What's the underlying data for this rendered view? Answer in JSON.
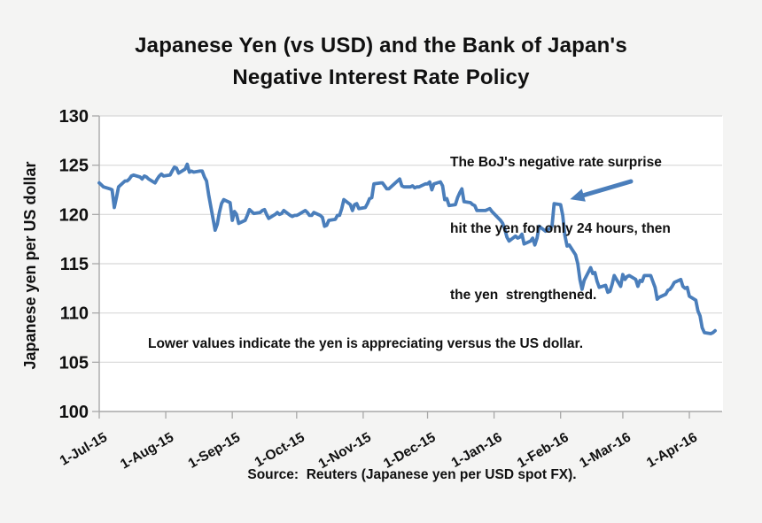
{
  "title": {
    "line1": "Japanese Yen (vs USD) and the Bank of Japan's",
    "line2": "Negative Interest Rate Policy"
  },
  "annotation": {
    "line1": "The BoJ's negative rate surprise",
    "line2": "hit the yen for only 24 hours, then",
    "line3": "the yen  strengthened."
  },
  "note": "Lower values indicate the yen is appreciating versus the US dollar.",
  "source": "Source:  Reuters (Japanese yen per USD spot FX).",
  "colors": {
    "line": "#4a7ebb",
    "arrow": "#4a7ebb",
    "grid": "#d8d8d8",
    "axis": "#a8a8a8",
    "text": "#101010",
    "plot_background": "#ffffff",
    "page_background": "#f4f4f3"
  },
  "chart_data": {
    "type": "line",
    "title": "Japanese Yen (vs USD) and the Bank of Japan's Negative Interest Rate Policy",
    "xlabel": "",
    "ylabel": "Japanese yen per US dollar",
    "ylim": [
      100,
      130
    ],
    "y_ticks": [
      130,
      125,
      120,
      115,
      110,
      105,
      100
    ],
    "x_unit": "days since 1-Jul-15",
    "x_ticks": [
      {
        "label": "1-Jul-15",
        "day": 0
      },
      {
        "label": "1-Aug-15",
        "day": 31
      },
      {
        "label": "1-Sep-15",
        "day": 62
      },
      {
        "label": "1-Oct-15",
        "day": 92
      },
      {
        "label": "1-Nov-15",
        "day": 123
      },
      {
        "label": "1-Dec-15",
        "day": 153
      },
      {
        "label": "1-Jan-16",
        "day": 184
      },
      {
        "label": "1-Feb-16",
        "day": 215
      },
      {
        "label": "1-Mar-16",
        "day": 244
      },
      {
        "label": "1-Apr-16",
        "day": 275
      }
    ],
    "grid": "horizontal",
    "legend": "none",
    "events": [
      {
        "label": "BoJ negative rate announcement spike (arrow target)",
        "day": 212,
        "value": 121.1
      }
    ],
    "series": [
      {
        "name": "Japanese yen per US dollar (Reuters spot FX)",
        "points": [
          [
            0,
            123.2
          ],
          [
            1,
            123.0
          ],
          [
            2,
            122.8
          ],
          [
            5,
            122.6
          ],
          [
            6,
            122.5
          ],
          [
            7,
            120.7
          ],
          [
            8,
            121.7
          ],
          [
            9,
            122.8
          ],
          [
            12,
            123.4
          ],
          [
            13,
            123.4
          ],
          [
            14,
            123.6
          ],
          [
            15,
            123.9
          ],
          [
            16,
            124.0
          ],
          [
            19,
            123.8
          ],
          [
            20,
            123.6
          ],
          [
            21,
            123.9
          ],
          [
            22,
            123.8
          ],
          [
            23,
            123.6
          ],
          [
            26,
            123.2
          ],
          [
            27,
            123.6
          ],
          [
            28,
            123.9
          ],
          [
            29,
            124.1
          ],
          [
            30,
            123.9
          ],
          [
            33,
            124.0
          ],
          [
            34,
            124.4
          ],
          [
            35,
            124.8
          ],
          [
            36,
            124.7
          ],
          [
            37,
            124.2
          ],
          [
            40,
            124.6
          ],
          [
            41,
            125.1
          ],
          [
            42,
            124.3
          ],
          [
            43,
            124.4
          ],
          [
            44,
            124.3
          ],
          [
            47,
            124.4
          ],
          [
            48,
            124.4
          ],
          [
            49,
            123.8
          ],
          [
            50,
            123.4
          ],
          [
            51,
            122.0
          ],
          [
            54,
            118.4
          ],
          [
            55,
            119.0
          ],
          [
            56,
            120.2
          ],
          [
            57,
            121.1
          ],
          [
            58,
            121.5
          ],
          [
            61,
            121.2
          ],
          [
            62,
            119.4
          ],
          [
            63,
            120.3
          ],
          [
            64,
            120.0
          ],
          [
            65,
            119.1
          ],
          [
            68,
            119.4
          ],
          [
            69,
            119.9
          ],
          [
            70,
            120.5
          ],
          [
            71,
            120.3
          ],
          [
            72,
            120.1
          ],
          [
            75,
            120.2
          ],
          [
            76,
            120.4
          ],
          [
            77,
            120.5
          ],
          [
            78,
            120.0
          ],
          [
            79,
            119.6
          ],
          [
            82,
            120.0
          ],
          [
            83,
            120.2
          ],
          [
            84,
            120.0
          ],
          [
            85,
            120.1
          ],
          [
            86,
            120.4
          ],
          [
            89,
            119.9
          ],
          [
            90,
            119.8
          ],
          [
            91,
            119.9
          ],
          [
            92,
            119.9
          ],
          [
            93,
            120.0
          ],
          [
            96,
            120.4
          ],
          [
            97,
            120.2
          ],
          [
            98,
            119.9
          ],
          [
            99,
            119.9
          ],
          [
            100,
            120.2
          ],
          [
            103,
            119.9
          ],
          [
            104,
            119.7
          ],
          [
            105,
            118.8
          ],
          [
            106,
            118.9
          ],
          [
            107,
            119.4
          ],
          [
            110,
            119.5
          ],
          [
            111,
            119.9
          ],
          [
            112,
            119.9
          ],
          [
            113,
            120.6
          ],
          [
            114,
            121.5
          ],
          [
            117,
            121.0
          ],
          [
            118,
            120.4
          ],
          [
            119,
            121.0
          ],
          [
            120,
            121.1
          ],
          [
            121,
            120.6
          ],
          [
            124,
            120.7
          ],
          [
            125,
            121.1
          ],
          [
            126,
            121.6
          ],
          [
            127,
            121.7
          ],
          [
            128,
            123.1
          ],
          [
            131,
            123.2
          ],
          [
            132,
            123.2
          ],
          [
            133,
            122.9
          ],
          [
            134,
            122.6
          ],
          [
            135,
            122.6
          ],
          [
            138,
            123.2
          ],
          [
            139,
            123.4
          ],
          [
            140,
            123.6
          ],
          [
            141,
            122.9
          ],
          [
            142,
            122.8
          ],
          [
            145,
            122.8
          ],
          [
            146,
            122.9
          ],
          [
            147,
            122.7
          ],
          [
            148,
            122.8
          ],
          [
            149,
            122.8
          ],
          [
            152,
            123.1
          ],
          [
            153,
            123.1
          ],
          [
            154,
            123.3
          ],
          [
            155,
            122.5
          ],
          [
            156,
            123.1
          ],
          [
            159,
            123.3
          ],
          [
            160,
            122.9
          ],
          [
            161,
            121.5
          ],
          [
            162,
            121.6
          ],
          [
            163,
            120.9
          ],
          [
            166,
            121.0
          ],
          [
            167,
            121.7
          ],
          [
            168,
            122.2
          ],
          [
            169,
            122.6
          ],
          [
            170,
            121.3
          ],
          [
            173,
            121.2
          ],
          [
            174,
            121.0
          ],
          [
            175,
            120.9
          ],
          [
            176,
            120.4
          ],
          [
            180,
            120.4
          ],
          [
            181,
            120.5
          ],
          [
            182,
            120.6
          ],
          [
            183,
            120.3
          ],
          [
            187,
            119.4
          ],
          [
            188,
            119.1
          ],
          [
            189,
            118.5
          ],
          [
            190,
            117.7
          ],
          [
            191,
            117.3
          ],
          [
            194,
            117.8
          ],
          [
            195,
            117.6
          ],
          [
            196,
            117.7
          ],
          [
            197,
            118.0
          ],
          [
            198,
            117.0
          ],
          [
            201,
            117.3
          ],
          [
            202,
            117.6
          ],
          [
            203,
            116.9
          ],
          [
            204,
            117.6
          ],
          [
            205,
            118.8
          ],
          [
            208,
            118.3
          ],
          [
            209,
            118.4
          ],
          [
            210,
            118.6
          ],
          [
            211,
            118.8
          ],
          [
            212,
            121.1
          ],
          [
            215,
            121.0
          ],
          [
            216,
            119.9
          ],
          [
            217,
            117.9
          ],
          [
            218,
            116.8
          ],
          [
            219,
            116.9
          ],
          [
            222,
            115.9
          ],
          [
            223,
            115.0
          ],
          [
            224,
            113.4
          ],
          [
            225,
            112.4
          ],
          [
            226,
            113.3
          ],
          [
            229,
            114.6
          ],
          [
            230,
            114.0
          ],
          [
            231,
            114.1
          ],
          [
            232,
            113.2
          ],
          [
            233,
            112.6
          ],
          [
            236,
            112.8
          ],
          [
            237,
            112.1
          ],
          [
            238,
            112.2
          ],
          [
            239,
            112.9
          ],
          [
            240,
            113.8
          ],
          [
            243,
            112.7
          ],
          [
            244,
            113.9
          ],
          [
            245,
            113.4
          ],
          [
            246,
            113.7
          ],
          [
            247,
            113.8
          ],
          [
            250,
            113.4
          ],
          [
            251,
            112.7
          ],
          [
            252,
            113.3
          ],
          [
            253,
            113.2
          ],
          [
            254,
            113.8
          ],
          [
            257,
            113.8
          ],
          [
            258,
            113.2
          ],
          [
            259,
            112.6
          ],
          [
            260,
            111.4
          ],
          [
            261,
            111.6
          ],
          [
            264,
            111.9
          ],
          [
            265,
            112.3
          ],
          [
            266,
            112.4
          ],
          [
            267,
            112.7
          ],
          [
            268,
            113.1
          ],
          [
            271,
            113.4
          ],
          [
            272,
            112.7
          ],
          [
            273,
            112.5
          ],
          [
            274,
            112.6
          ],
          [
            275,
            111.7
          ],
          [
            278,
            111.3
          ],
          [
            279,
            110.2
          ],
          [
            280,
            109.7
          ],
          [
            281,
            108.5
          ],
          [
            282,
            108.0
          ],
          [
            285,
            107.9
          ],
          [
            286,
            108.0
          ],
          [
            287,
            108.2
          ]
        ]
      }
    ]
  }
}
